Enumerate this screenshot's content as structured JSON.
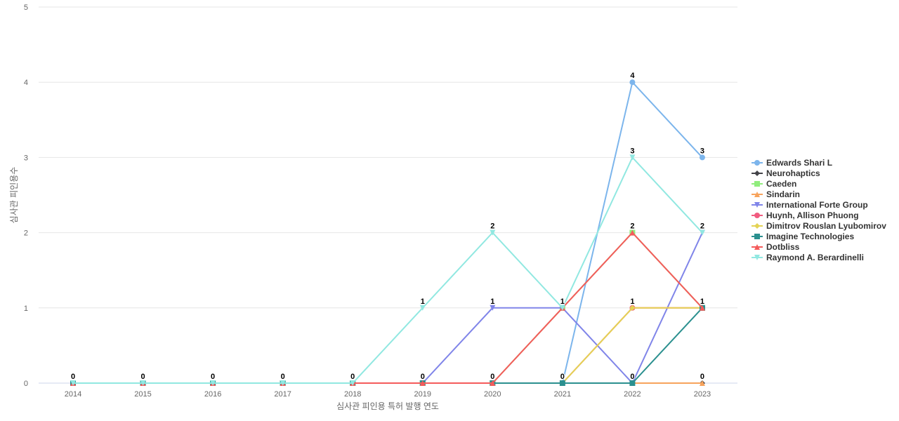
{
  "chart_data": {
    "type": "line",
    "xlabel": "심사관 피인용 특허 발행 연도",
    "ylabel": "심사관 피인용수",
    "x": [
      2014,
      2015,
      2016,
      2017,
      2018,
      2019,
      2020,
      2021,
      2022,
      2023
    ],
    "ylim": [
      0,
      5
    ],
    "yticks": [
      0,
      1,
      2,
      3,
      4,
      5
    ],
    "grid": true,
    "legend": "right",
    "series": [
      {
        "name": "Edwards Shari L",
        "color": "#7cb5ec",
        "marker": "circle",
        "values": [
          0,
          0,
          0,
          0,
          0,
          0,
          0,
          0,
          4,
          3
        ]
      },
      {
        "name": "Neurohaptics",
        "color": "#434348",
        "marker": "diamond",
        "values": [
          0,
          0,
          0,
          0,
          0,
          0,
          0,
          0,
          0,
          0
        ]
      },
      {
        "name": "Caeden",
        "color": "#90ed7d",
        "marker": "square",
        "values": [
          0,
          0,
          0,
          0,
          0,
          0,
          0,
          1,
          2,
          1
        ]
      },
      {
        "name": "Sindarin",
        "color": "#f7a35c",
        "marker": "triangle",
        "values": [
          0,
          0,
          0,
          0,
          0,
          0,
          0,
          0,
          0,
          0
        ]
      },
      {
        "name": "International Forte Group",
        "color": "#8085e9",
        "marker": "triangle-down",
        "values": [
          0,
          0,
          0,
          0,
          0,
          0,
          1,
          1,
          0,
          2
        ]
      },
      {
        "name": "Huynh, Allison Phuong",
        "color": "#f15c80",
        "marker": "circle",
        "values": [
          0,
          0,
          0,
          0,
          0,
          0,
          0,
          0,
          1,
          1
        ]
      },
      {
        "name": "Dimitrov Rouslan Lyubomirov",
        "color": "#e4d354",
        "marker": "diamond",
        "values": [
          0,
          0,
          0,
          0,
          0,
          0,
          0,
          0,
          1,
          1
        ]
      },
      {
        "name": "Imagine Technologies",
        "color": "#2b908f",
        "marker": "square",
        "values": [
          0,
          0,
          0,
          0,
          0,
          0,
          0,
          0,
          0,
          1
        ]
      },
      {
        "name": "Dotbliss",
        "color": "#f45b5b",
        "marker": "triangle",
        "values": [
          0,
          0,
          0,
          0,
          0,
          0,
          0,
          1,
          2,
          1
        ]
      },
      {
        "name": "Raymond A. Berardinelli",
        "color": "#91e8e1",
        "marker": "triangle-down",
        "values": [
          0,
          0,
          0,
          0,
          0,
          1,
          2,
          1,
          3,
          2
        ]
      }
    ]
  }
}
